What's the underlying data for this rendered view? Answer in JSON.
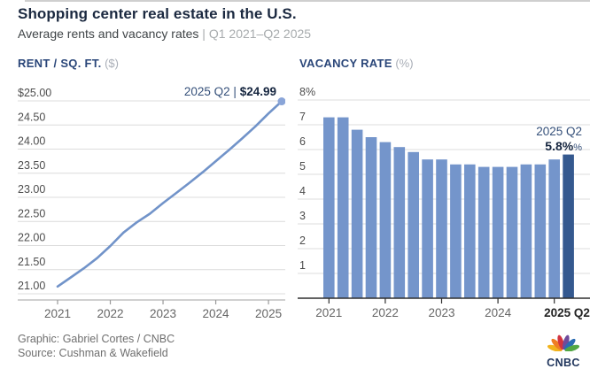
{
  "header": {
    "title": "Shopping center real estate in the U.S.",
    "subtitle_main": "Average rents and vacancy rates",
    "subtitle_sep": " | ",
    "subtitle_range": "Q1 2021–Q2 2025"
  },
  "rent_chart": {
    "heading": "RENT / SQ. FT.",
    "unit": " ($)",
    "annotation_period": "2025 Q2 | ",
    "annotation_value": "$24.99"
  },
  "vacancy_chart": {
    "heading": "VACANCY RATE",
    "unit": " (%)",
    "annotation_period": "2025 Q2",
    "annotation_value": "5.8%",
    "annotation_suffix": "%"
  },
  "footer": {
    "credit": "Graphic: Gabriel Cortes / CNBC",
    "source": "Source: Cushman & Wakefield",
    "logo_text": "CNBC"
  },
  "colors": {
    "line_blue": "#7193c9",
    "dot_blue": "#8aa5d8",
    "bar_blue": "#7495cb",
    "bar_dark": "#35598f",
    "grid": "#dcdcdc",
    "axis_light": "#b3b3b3",
    "axis_dark": "#2e2e2e",
    "ylabel": "#4d4d4d",
    "xlabel": "#666666",
    "xlabel_bold": "#242424",
    "peacock": [
      "#f2b31c",
      "#ef7d23",
      "#d23440",
      "#6f4b9b",
      "#2b6cb3",
      "#52a744"
    ]
  },
  "chart_data": [
    {
      "type": "line",
      "title": "RENT / SQ. FT. ($)",
      "x": [
        "Q1 2021",
        "Q2 2021",
        "Q3 2021",
        "Q4 2021",
        "Q1 2022",
        "Q2 2022",
        "Q3 2022",
        "Q4 2022",
        "Q1 2023",
        "Q2 2023",
        "Q3 2023",
        "Q4 2023",
        "Q1 2024",
        "Q2 2024",
        "Q3 2024",
        "Q4 2024",
        "Q1 2025",
        "Q2 2025"
      ],
      "values": [
        21.15,
        21.34,
        21.53,
        21.74,
        21.99,
        22.27,
        22.48,
        22.66,
        22.88,
        23.09,
        23.3,
        23.52,
        23.75,
        23.98,
        24.22,
        24.47,
        24.74,
        24.99
      ],
      "ylim": [
        21.0,
        25.0
      ],
      "ytick_values": [
        25.0,
        24.5,
        24.0,
        23.5,
        23.0,
        22.5,
        22.0,
        21.5,
        21.0
      ],
      "ytick_labels": [
        "$25.00",
        "24.50",
        "24.00",
        "23.50",
        "23.00",
        "22.50",
        "22.00",
        "21.50",
        "21.00"
      ],
      "xtick_labels": [
        "2021",
        "2022",
        "2023",
        "2024",
        "2025"
      ],
      "grid": true,
      "legend": "none",
      "annotation": "2025 Q2 | $24.99"
    },
    {
      "type": "bar",
      "title": "VACANCY RATE (%)",
      "categories": [
        "Q1 2021",
        "Q2 2021",
        "Q3 2021",
        "Q4 2021",
        "Q1 2022",
        "Q2 2022",
        "Q3 2022",
        "Q4 2022",
        "Q1 2023",
        "Q2 2023",
        "Q3 2023",
        "Q4 2023",
        "Q1 2024",
        "Q2 2024",
        "Q3 2024",
        "Q4 2024",
        "Q1 2025",
        "Q2 2025"
      ],
      "values": [
        7.3,
        7.3,
        6.8,
        6.5,
        6.3,
        6.1,
        5.9,
        5.6,
        5.6,
        5.4,
        5.4,
        5.3,
        5.3,
        5.3,
        5.4,
        5.4,
        5.6,
        5.8
      ],
      "ylim": [
        0,
        8
      ],
      "ytick_values": [
        8,
        7,
        6,
        5,
        4,
        3,
        2,
        1
      ],
      "ytick_labels": [
        "8%",
        "7",
        "6",
        "5",
        "4",
        "3",
        "2",
        "1"
      ],
      "xtick_labels": [
        "2021",
        "2022",
        "2023",
        "2024",
        "2025 Q2"
      ],
      "grid": true,
      "legend": "none",
      "annotation": "2025 Q2 5.8%",
      "highlight_last_bar": true
    }
  ]
}
